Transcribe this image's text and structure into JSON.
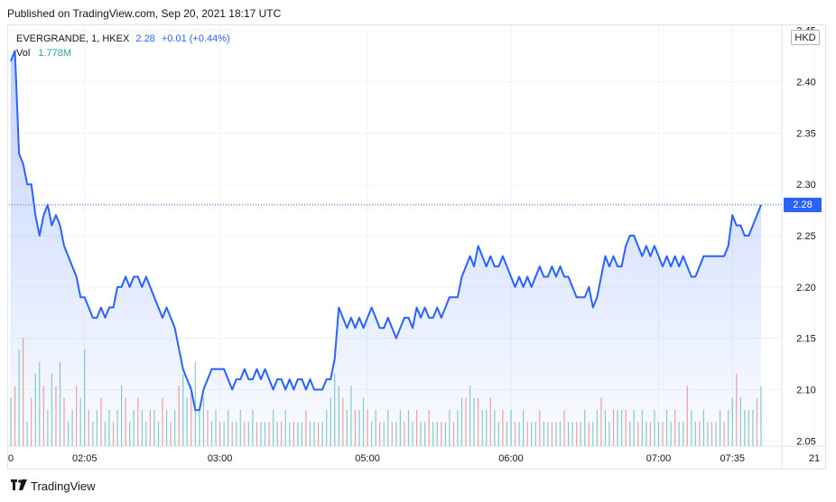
{
  "published": "Published on TradingView.com, Sep 20, 2021 18:17 UTC",
  "legend": {
    "symbol": "EVERGRANDE, 1, HKEX",
    "last": "2.28",
    "change": "+0.01 (+0.44%)",
    "vol_label": "Vol",
    "vol_value": "1.778M"
  },
  "currency": "HKD",
  "price_tag": "2.28",
  "footer": {
    "logo_icon": "tradingview-logo-icon",
    "brand": "TradingView"
  },
  "colors": {
    "line": "#2962ff",
    "up": "#26a69a",
    "down": "#ef5350",
    "grid": "#f0f3fa"
  },
  "chart_data": {
    "type": "area",
    "title": "",
    "xlabel": "",
    "ylabel": "",
    "ylim": [
      2.045,
      2.455
    ],
    "y_ticks": [
      "2.05",
      "2.10",
      "2.15",
      "2.20",
      "2.25",
      "2.30",
      "2.35",
      "2.40",
      "2.45"
    ],
    "x_ticks": [
      {
        "index": 0,
        "label": "0"
      },
      {
        "index": 18,
        "label": "02:05"
      },
      {
        "index": 51,
        "label": "03:00"
      },
      {
        "index": 87,
        "label": "05:00"
      },
      {
        "index": 122,
        "label": "06:00"
      },
      {
        "index": 158,
        "label": "07:00"
      },
      {
        "index": 176,
        "label": "07:35"
      },
      {
        "index": 196,
        "label": "21"
      }
    ],
    "last_price": 2.28,
    "price": [
      2.42,
      2.43,
      2.33,
      2.32,
      2.3,
      2.3,
      2.27,
      2.25,
      2.27,
      2.28,
      2.26,
      2.27,
      2.26,
      2.24,
      2.23,
      2.22,
      2.21,
      2.19,
      2.19,
      2.18,
      2.17,
      2.17,
      2.18,
      2.17,
      2.18,
      2.18,
      2.2,
      2.2,
      2.21,
      2.2,
      2.21,
      2.21,
      2.2,
      2.21,
      2.2,
      2.19,
      2.18,
      2.17,
      2.18,
      2.17,
      2.16,
      2.14,
      2.12,
      2.11,
      2.1,
      2.08,
      2.08,
      2.1,
      2.11,
      2.12,
      2.12,
      2.12,
      2.12,
      2.11,
      2.1,
      2.11,
      2.11,
      2.12,
      2.11,
      2.11,
      2.12,
      2.11,
      2.12,
      2.11,
      2.1,
      2.11,
      2.11,
      2.1,
      2.11,
      2.1,
      2.11,
      2.11,
      2.1,
      2.11,
      2.1,
      2.1,
      2.1,
      2.11,
      2.11,
      2.13,
      2.18,
      2.17,
      2.16,
      2.17,
      2.16,
      2.17,
      2.16,
      2.17,
      2.18,
      2.17,
      2.16,
      2.16,
      2.17,
      2.16,
      2.15,
      2.16,
      2.17,
      2.17,
      2.16,
      2.18,
      2.17,
      2.18,
      2.17,
      2.17,
      2.18,
      2.17,
      2.18,
      2.19,
      2.19,
      2.19,
      2.21,
      2.22,
      2.23,
      2.22,
      2.24,
      2.23,
      2.22,
      2.23,
      2.22,
      2.22,
      2.23,
      2.22,
      2.21,
      2.2,
      2.21,
      2.2,
      2.21,
      2.2,
      2.21,
      2.22,
      2.21,
      2.21,
      2.22,
      2.21,
      2.22,
      2.21,
      2.21,
      2.2,
      2.19,
      2.19,
      2.19,
      2.2,
      2.18,
      2.19,
      2.21,
      2.23,
      2.22,
      2.23,
      2.22,
      2.22,
      2.24,
      2.25,
      2.25,
      2.24,
      2.23,
      2.24,
      2.23,
      2.24,
      2.23,
      2.22,
      2.23,
      2.22,
      2.23,
      2.22,
      2.23,
      2.22,
      2.21,
      2.21,
      2.22,
      2.23,
      2.23,
      2.23,
      2.23,
      2.23,
      2.23,
      2.24,
      2.27,
      2.26,
      2.26,
      2.25,
      2.25,
      2.26,
      2.27,
      2.28
    ],
    "volume_label": "Vol",
    "volume": [
      0.4,
      0.5,
      0.8,
      0.9,
      0.2,
      0.4,
      0.6,
      0.7,
      0.5,
      0.3,
      0.6,
      0.5,
      0.7,
      0.4,
      0.2,
      0.3,
      0.5,
      0.4,
      0.8,
      0.3,
      0.2,
      0.3,
      0.4,
      0.2,
      0.3,
      0.2,
      0.3,
      0.5,
      0.4,
      0.2,
      0.3,
      0.4,
      0.3,
      0.2,
      0.3,
      0.3,
      0.2,
      0.4,
      0.3,
      0.2,
      0.3,
      0.5,
      0.6,
      0.4,
      0.5,
      0.7,
      0.3,
      0.4,
      0.3,
      0.2,
      0.3,
      0.2,
      0.2,
      0.3,
      0.2,
      0.2,
      0.3,
      0.2,
      0.2,
      0.3,
      0.2,
      0.2,
      0.2,
      0.2,
      0.3,
      0.2,
      0.2,
      0.3,
      0.2,
      0.2,
      0.2,
      0.2,
      0.3,
      0.2,
      0.2,
      0.2,
      0.2,
      0.3,
      0.4,
      0.6,
      0.5,
      0.4,
      0.3,
      0.5,
      0.3,
      0.3,
      0.4,
      0.3,
      0.2,
      0.3,
      0.2,
      0.2,
      0.3,
      0.2,
      0.2,
      0.3,
      0.2,
      0.3,
      0.2,
      0.3,
      0.2,
      0.2,
      0.3,
      0.2,
      0.2,
      0.2,
      0.2,
      0.3,
      0.2,
      0.3,
      0.4,
      0.4,
      0.5,
      0.4,
      0.4,
      0.3,
      0.3,
      0.4,
      0.3,
      0.2,
      0.3,
      0.2,
      0.3,
      0.2,
      0.2,
      0.3,
      0.2,
      0.2,
      0.2,
      0.3,
      0.2,
      0.2,
      0.2,
      0.2,
      0.2,
      0.3,
      0.2,
      0.2,
      0.2,
      0.2,
      0.3,
      0.2,
      0.2,
      0.3,
      0.4,
      0.3,
      0.2,
      0.3,
      0.3,
      0.3,
      0.3,
      0.2,
      0.3,
      0.2,
      0.3,
      0.2,
      0.2,
      0.3,
      0.2,
      0.2,
      0.3,
      0.2,
      0.3,
      0.2,
      0.2,
      0.5,
      0.3,
      0.2,
      0.2,
      0.3,
      0.2,
      0.2,
      0.2,
      0.3,
      0.2,
      0.3,
      0.4,
      0.6,
      0.4,
      0.3,
      0.3,
      0.3,
      0.4,
      0.5
    ],
    "volume_up": [
      1,
      0,
      1,
      0,
      1,
      0,
      1,
      1,
      0,
      1,
      1,
      0,
      1,
      0,
      1,
      1,
      0,
      1,
      1,
      0,
      1,
      1,
      0,
      1,
      1,
      0,
      1,
      1,
      0,
      1,
      1,
      0,
      1,
      1,
      0,
      1,
      1,
      0,
      1,
      0,
      1,
      0,
      1,
      1,
      0,
      1,
      1,
      1,
      0,
      1,
      1,
      0,
      1,
      1,
      0,
      1,
      1,
      0,
      1,
      1,
      0,
      1,
      1,
      0,
      1,
      1,
      0,
      1,
      1,
      0,
      1,
      1,
      0,
      1,
      1,
      0,
      1,
      1,
      1,
      1,
      1,
      0,
      1,
      1,
      0,
      1,
      1,
      0,
      1,
      1,
      0,
      1,
      1,
      0,
      1,
      1,
      0,
      1,
      1,
      0,
      1,
      1,
      0,
      1,
      1,
      0,
      1,
      1,
      0,
      1,
      1,
      0,
      1,
      1,
      0,
      1,
      1,
      0,
      1,
      1,
      0,
      1,
      1,
      0,
      1,
      1,
      0,
      1,
      1,
      0,
      1,
      1,
      0,
      1,
      1,
      0,
      1,
      1,
      0,
      1,
      1,
      0,
      1,
      1,
      0,
      1,
      1,
      0,
      1,
      1,
      0,
      1,
      1,
      0,
      1,
      1,
      0,
      1,
      1,
      0,
      1,
      1,
      0,
      1,
      1,
      0,
      1,
      1,
      0,
      1,
      1,
      0,
      1,
      1,
      0,
      1,
      1,
      0,
      1,
      1,
      1,
      1,
      0,
      1,
      1,
      0,
      1,
      1,
      1,
      1
    ]
  }
}
